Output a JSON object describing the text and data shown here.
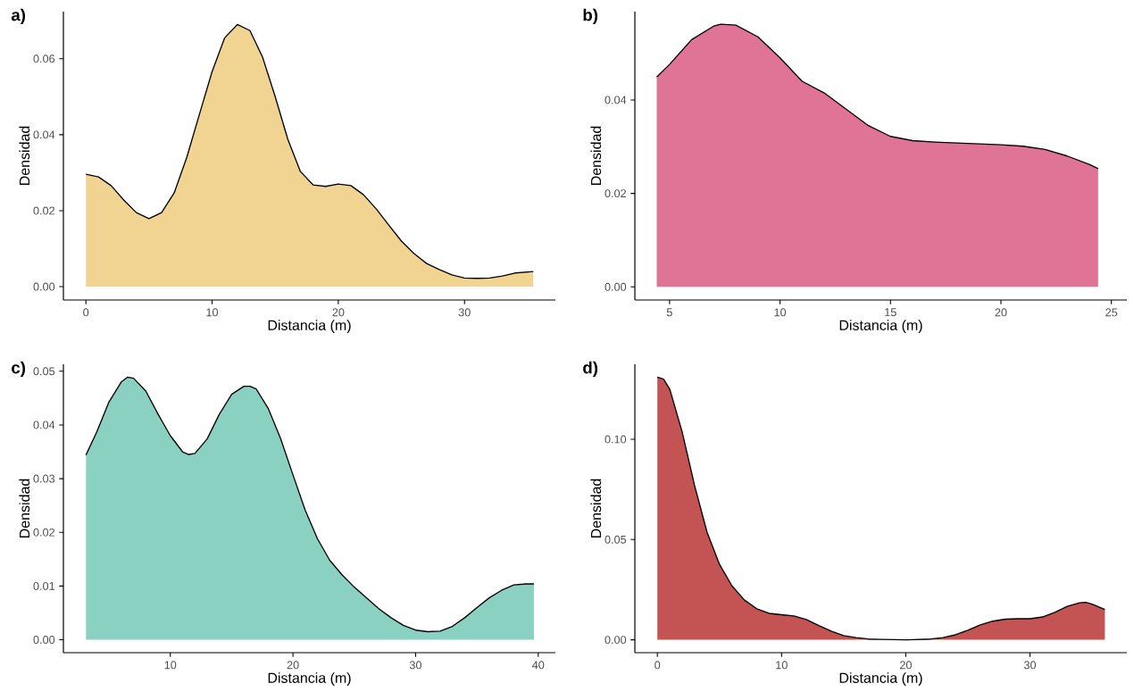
{
  "chart_data": [
    {
      "type": "area",
      "title": "a)",
      "xlabel": "Distancia (m)",
      "ylabel": "Densidad",
      "color": "#f1d492",
      "x": [
        0,
        1,
        2,
        3,
        4,
        5,
        6,
        7,
        8,
        9,
        10,
        11,
        12,
        13,
        14,
        15,
        16,
        17,
        18,
        19,
        20,
        21,
        22,
        23,
        24,
        25,
        26,
        27,
        28,
        29,
        30,
        31,
        32,
        33,
        34,
        35.45
      ],
      "values": [
        0.0296,
        0.0289,
        0.0266,
        0.0228,
        0.0195,
        0.0179,
        0.0195,
        0.0247,
        0.0341,
        0.0454,
        0.0566,
        0.0655,
        0.069,
        0.0674,
        0.0604,
        0.05,
        0.0388,
        0.0303,
        0.0268,
        0.0264,
        0.027,
        0.0266,
        0.0242,
        0.0205,
        0.0162,
        0.012,
        0.0087,
        0.0061,
        0.0045,
        0.0031,
        0.0023,
        0.0022,
        0.0023,
        0.0028,
        0.0036,
        0.004
      ],
      "xlim": [
        -1.78,
        37.2
      ],
      "ylim": [
        -0.0035,
        0.0724
      ],
      "xticks": [
        0,
        10,
        20,
        30
      ],
      "yticks": [
        {
          "value": 0,
          "label": "0.00"
        },
        {
          "value": 0.02,
          "label": "0.02"
        },
        {
          "value": 0.04,
          "label": "0.04"
        },
        {
          "value": 0.06,
          "label": "0.06"
        }
      ]
    },
    {
      "type": "area",
      "title": "b)",
      "xlabel": "Distancia (m)",
      "ylabel": "Densidad",
      "color": "#e07496",
      "x": [
        4.42,
        5,
        6,
        7,
        7.32,
        8,
        9,
        10,
        11,
        12,
        13,
        14,
        15,
        16,
        17,
        18,
        19,
        20,
        21,
        22,
        23,
        24,
        24.4
      ],
      "values": [
        0.0449,
        0.0476,
        0.0529,
        0.0558,
        0.0562,
        0.056,
        0.0535,
        0.049,
        0.044,
        0.0415,
        0.038,
        0.0345,
        0.0322,
        0.0313,
        0.031,
        0.0308,
        0.0306,
        0.0304,
        0.0301,
        0.0294,
        0.028,
        0.0262,
        0.0253
      ],
      "xlim": [
        3.43,
        25.7
      ],
      "ylim": [
        -0.0028,
        0.0589
      ],
      "xticks": [
        5,
        10,
        15,
        20,
        25
      ],
      "yticks": [
        {
          "value": 0,
          "label": "0.00"
        },
        {
          "value": 0.02,
          "label": "0.02"
        },
        {
          "value": 0.04,
          "label": "0.04"
        }
      ]
    },
    {
      "type": "area",
      "title": "c)",
      "xlabel": "Distancia (m)",
      "ylabel": "Densidad",
      "color": "#8bd1c1",
      "x": [
        3.12,
        4,
        5,
        6,
        6.5,
        7,
        8,
        9,
        10,
        11,
        11.5,
        12,
        13,
        14,
        15,
        16,
        16.5,
        17,
        18,
        19,
        20,
        21,
        22,
        23,
        24,
        25,
        26,
        27,
        28,
        29,
        30,
        31,
        32,
        33,
        34,
        35,
        36,
        37,
        38,
        39,
        39.65
      ],
      "values": [
        0.0344,
        0.0387,
        0.0443,
        0.048,
        0.0489,
        0.0487,
        0.0463,
        0.042,
        0.038,
        0.035,
        0.0345,
        0.0347,
        0.0374,
        0.042,
        0.0457,
        0.0472,
        0.0472,
        0.0467,
        0.043,
        0.0374,
        0.0307,
        0.0241,
        0.0188,
        0.0148,
        0.0121,
        0.0098,
        0.0078,
        0.0058,
        0.0041,
        0.0027,
        0.0018,
        0.0015,
        0.0016,
        0.0025,
        0.0041,
        0.006,
        0.0078,
        0.0092,
        0.0102,
        0.0104,
        0.0104
      ],
      "xlim": [
        1.28,
        41.4
      ],
      "ylim": [
        -0.0024,
        0.0513
      ],
      "xticks": [
        10,
        20,
        30,
        40
      ],
      "yticks": [
        {
          "value": 0,
          "label": "0.00"
        },
        {
          "value": 0.01,
          "label": "0.01"
        },
        {
          "value": 0.02,
          "label": "0.02"
        },
        {
          "value": 0.03,
          "label": "0.03"
        },
        {
          "value": 0.04,
          "label": "0.04"
        },
        {
          "value": 0.05,
          "label": "0.05"
        }
      ]
    },
    {
      "type": "area",
      "title": "d)",
      "xlabel": "Distancia (m)",
      "ylabel": "Densidad",
      "color": "#c45353",
      "x": [
        0,
        0.5,
        1,
        2,
        3,
        4,
        5,
        6,
        7,
        8,
        9,
        10,
        11,
        12,
        13,
        14,
        15,
        16,
        17,
        18,
        20,
        22,
        23,
        24,
        25,
        26,
        27,
        28,
        29,
        30,
        31,
        32,
        33,
        34,
        34.5,
        35,
        36.03
      ],
      "values": [
        0.131,
        0.13,
        0.125,
        0.1036,
        0.0769,
        0.0537,
        0.0377,
        0.027,
        0.0199,
        0.0155,
        0.0132,
        0.0125,
        0.0119,
        0.0101,
        0.0071,
        0.0043,
        0.0021,
        0.0011,
        0.0004,
        0.0002,
        0,
        0.0004,
        0.0011,
        0.0025,
        0.0048,
        0.0075,
        0.0093,
        0.0103,
        0.0105,
        0.0105,
        0.0114,
        0.0137,
        0.0167,
        0.0185,
        0.0187,
        0.0178,
        0.0151
      ],
      "xlim": [
        -1.81,
        37.8
      ],
      "ylim": [
        -0.0064,
        0.1374
      ],
      "xticks": [
        0,
        10,
        20,
        30
      ],
      "yticks": [
        {
          "value": 0,
          "label": "0.00"
        },
        {
          "value": 0.05,
          "label": "0.05"
        },
        {
          "value": 0.1,
          "label": "0.10"
        }
      ]
    }
  ]
}
